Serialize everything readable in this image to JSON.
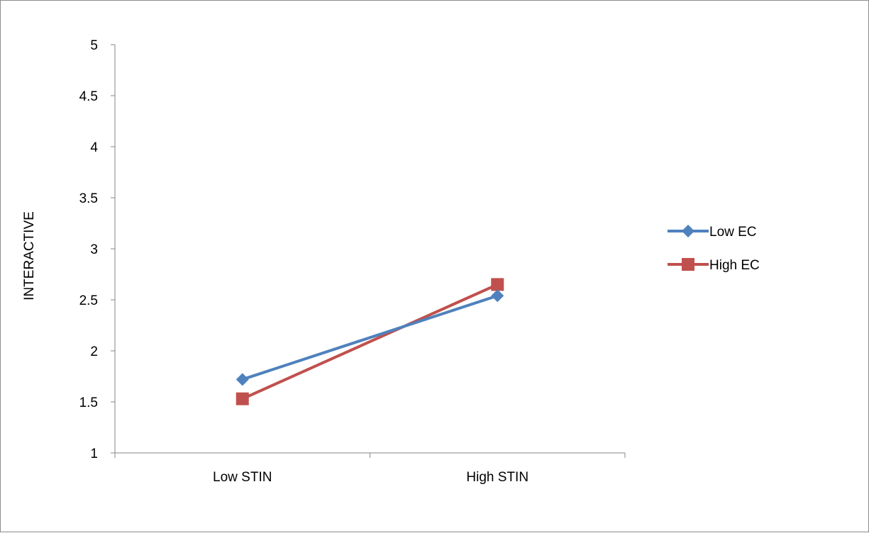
{
  "chart_data": {
    "type": "line",
    "categories": [
      "Low STIN",
      "High STIN"
    ],
    "series": [
      {
        "name": "Low EC",
        "values": [
          1.72,
          2.54
        ],
        "color": "#4F81BD",
        "marker": "diamond"
      },
      {
        "name": "High EC",
        "values": [
          1.53,
          2.65
        ],
        "color": "#C0504D",
        "marker": "square"
      }
    ],
    "xlabel": "",
    "ylabel": "INTERACTIVE",
    "ylim": [
      1,
      5
    ],
    "yticks": [
      "1",
      "1.5",
      "2",
      "2.5",
      "3",
      "3.5",
      "4",
      "4.5",
      "5"
    ],
    "grid": false,
    "legend_position": "right"
  }
}
